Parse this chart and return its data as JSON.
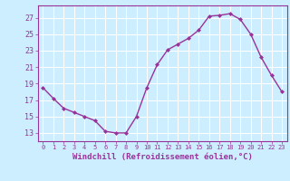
{
  "x": [
    0,
    1,
    2,
    3,
    4,
    5,
    6,
    7,
    8,
    9,
    10,
    11,
    12,
    13,
    14,
    15,
    16,
    17,
    18,
    19,
    20,
    21,
    22,
    23
  ],
  "y": [
    18.5,
    17.2,
    16.0,
    15.5,
    15.0,
    14.5,
    13.2,
    13.0,
    13.0,
    15.0,
    18.5,
    21.3,
    23.1,
    23.8,
    24.5,
    25.5,
    27.2,
    27.3,
    27.5,
    26.8,
    25.0,
    22.2,
    20.0,
    18.0
  ],
  "line_color": "#993399",
  "marker": "D",
  "marker_size": 2.0,
  "bg_color": "#cceeff",
  "grid_color": "#ffffff",
  "xlabel": "Windchill (Refroidissement éolien,°C)",
  "xlim": [
    -0.5,
    23.5
  ],
  "ylim": [
    12.0,
    28.5
  ],
  "yticks": [
    13,
    15,
    17,
    19,
    21,
    23,
    25,
    27
  ],
  "xticks": [
    0,
    1,
    2,
    3,
    4,
    5,
    6,
    7,
    8,
    9,
    10,
    11,
    12,
    13,
    14,
    15,
    16,
    17,
    18,
    19,
    20,
    21,
    22,
    23
  ],
  "tick_color": "#993399",
  "label_color": "#993399",
  "spine_color": "#993399",
  "xlabel_fontsize": 6.5,
  "xtick_fontsize": 5.0,
  "ytick_fontsize": 6.0,
  "linewidth": 1.0
}
